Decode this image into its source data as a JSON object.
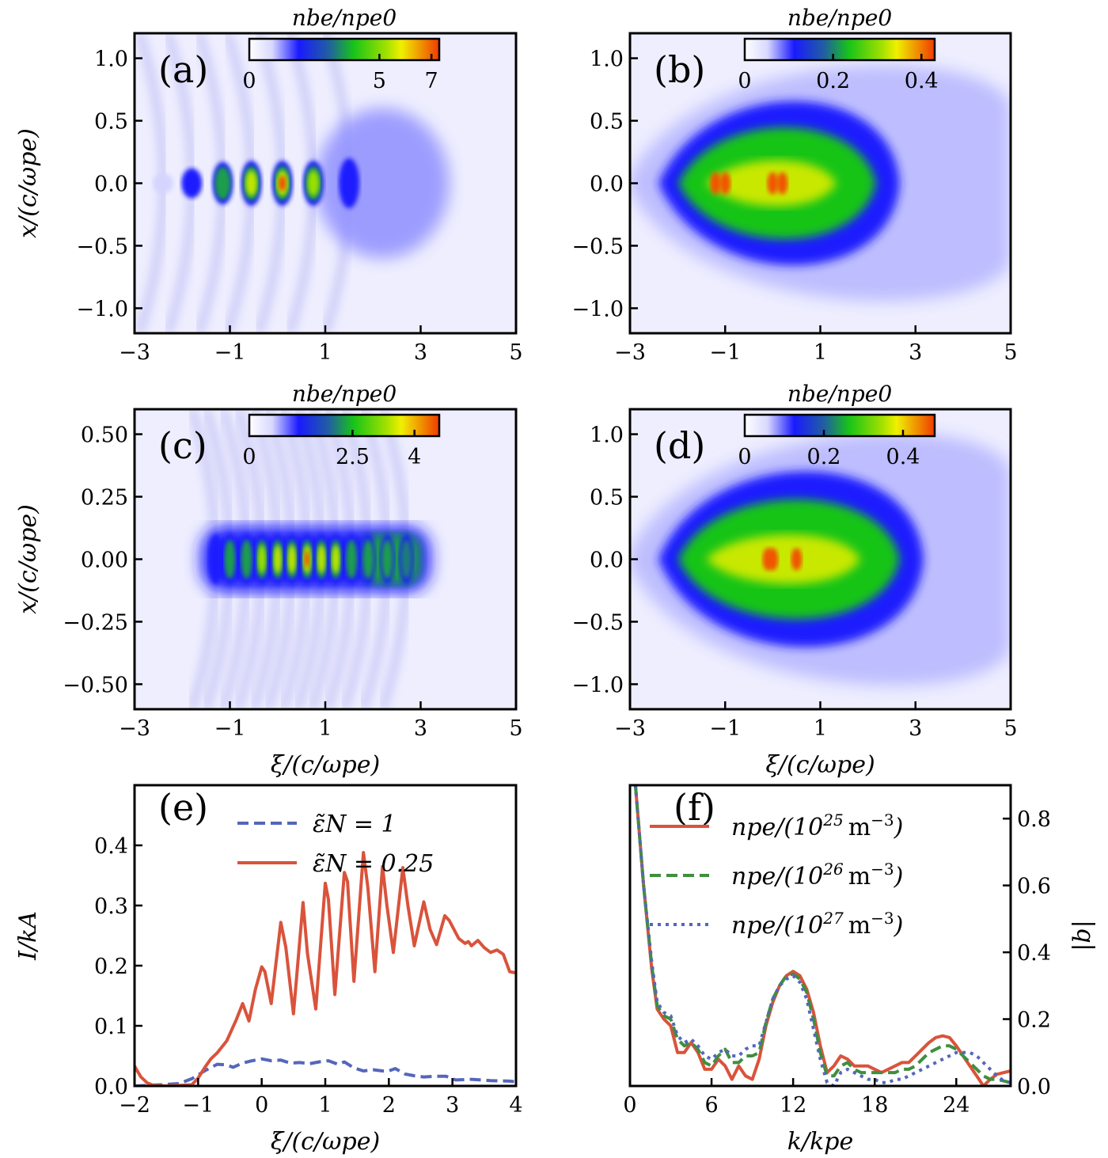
{
  "figure": {
    "colormap": [
      "#ffffff",
      "#1a1aff",
      "#18c418",
      "#e8f000",
      "#f04000"
    ],
    "colors": {
      "red": "#d9533b",
      "blue": "#5566bb",
      "green": "#3f8f3f"
    }
  },
  "chart_data": [
    {
      "id": "a",
      "type": "heatmap",
      "panel_label": "(a)",
      "title": "",
      "xlabel": "",
      "ylabel": "x/(c/ωpe)",
      "xlim": [
        -3,
        5
      ],
      "ylim": [
        -1.2,
        1.2
      ],
      "xticks": [
        -3,
        -1,
        1,
        3,
        5
      ],
      "xtick_labels": [
        "−3",
        "−1",
        "1",
        "3",
        "5"
      ],
      "yticks": [
        1.0,
        0.5,
        0.0,
        -0.5,
        -1.0
      ],
      "ytick_labels": [
        "1.0",
        "0.5",
        "0.0",
        "−0.5",
        "−1.0"
      ],
      "colorbar": {
        "label": "nbe/npe0",
        "range": [
          0,
          7.3
        ],
        "ticks": [
          0,
          5,
          7
        ],
        "tick_labels": [
          "0",
          "5",
          "7"
        ]
      },
      "features": {
        "bunch_centers_xi": [
          -2.4,
          -1.8,
          -1.15,
          -0.55,
          0.1,
          0.75,
          1.5
        ],
        "peak_values": [
          0.9,
          2.5,
          4.5,
          6.5,
          7.2,
          5.2,
          3.2
        ],
        "bunch_half_width_x": [
          0.08,
          0.12,
          0.17,
          0.18,
          0.18,
          0.18,
          0.2
        ],
        "halo_center_xi": 2.2,
        "halo_radius_x": 0.6,
        "halo_value": 0.9
      }
    },
    {
      "id": "b",
      "type": "heatmap",
      "panel_label": "(b)",
      "title": "",
      "xlabel": "",
      "ylabel": "",
      "xlim": [
        -3,
        5
      ],
      "ylim": [
        -1.2,
        1.2
      ],
      "xticks": [
        -3,
        -1,
        1,
        3,
        5
      ],
      "xtick_labels": [
        "−3",
        "−1",
        "1",
        "3",
        "5"
      ],
      "yticks": [
        1.0,
        0.5,
        0.0,
        -0.5,
        -1.0
      ],
      "ytick_labels": [
        "1.0",
        "0.5",
        "0.0",
        "−0.5",
        "−1.0"
      ],
      "colorbar": {
        "label": "nbe/npe0",
        "range": [
          0,
          0.43
        ],
        "ticks": [
          0,
          0.2,
          0.4
        ],
        "tick_labels": [
          "0",
          "0.2",
          "0.4"
        ]
      },
      "features": {
        "cone_apex_xi": -2.4,
        "cone_end_xi": 2.5,
        "max_half_width_x": 0.7,
        "core_peak": 0.42,
        "hot_spots_xi": [
          -1.2,
          -1.0,
          0.0,
          0.2
        ]
      }
    },
    {
      "id": "c",
      "type": "heatmap",
      "panel_label": "(c)",
      "title": "",
      "xlabel": "ξ/(c/ωpe)",
      "ylabel": "x/(c/ωpe)",
      "xlim": [
        -3,
        5
      ],
      "ylim": [
        -0.6,
        0.6
      ],
      "xticks": [
        -3,
        -1,
        1,
        3,
        5
      ],
      "xtick_labels": [
        "−3",
        "−1",
        "1",
        "3",
        "5"
      ],
      "yticks": [
        0.5,
        0.25,
        0.0,
        -0.25,
        -0.5
      ],
      "ytick_labels": [
        "0.50",
        "0.25",
        "0.00",
        "−0.25",
        "−0.50"
      ],
      "colorbar": {
        "label": "nbe/npe0",
        "range": [
          0,
          4.6
        ],
        "ticks": [
          0,
          2.5,
          4
        ],
        "tick_labels": [
          "0",
          "2.5",
          "4"
        ]
      },
      "features": {
        "bunch_centers_xi": [
          -1.3,
          -1.0,
          -0.65,
          -0.33,
          0.0,
          0.3,
          0.62,
          0.92,
          1.22,
          1.55,
          1.9,
          2.3,
          2.7
        ],
        "peak_values": [
          1.3,
          2.4,
          3.0,
          3.3,
          3.8,
          4.1,
          4.5,
          4.2,
          3.6,
          3.0,
          2.5,
          2.3,
          2.1
        ]
      }
    },
    {
      "id": "d",
      "type": "heatmap",
      "panel_label": "(d)",
      "title": "",
      "xlabel": "ξ/(c/ωpe)",
      "ylabel": "",
      "xlim": [
        -3,
        5
      ],
      "ylim": [
        -1.2,
        1.2
      ],
      "xticks": [
        -3,
        -1,
        1,
        3,
        5
      ],
      "xtick_labels": [
        "−3",
        "−1",
        "1",
        "3",
        "5"
      ],
      "yticks": [
        1.0,
        0.5,
        0.0,
        -0.5,
        -1.0
      ],
      "ytick_labels": [
        "1.0",
        "0.5",
        "0.0",
        "−0.5",
        "−1.0"
      ],
      "colorbar": {
        "label": "nbe/npe0",
        "range": [
          0,
          0.48
        ],
        "ticks": [
          0,
          0.2,
          0.4
        ],
        "tick_labels": [
          "0",
          "0.2",
          "0.4"
        ]
      },
      "features": {
        "cone_apex_xi": -2.4,
        "cone_end_xi": 3.0,
        "max_half_width_x": 0.75,
        "core_peak": 0.46,
        "hot_spots_xi": [
          -0.1,
          0.0,
          0.5
        ]
      }
    },
    {
      "id": "e",
      "type": "line",
      "panel_label": "(e)",
      "title": "",
      "xlabel": "ξ/(c/ωpe)",
      "ylabel": "I/kA",
      "xlim": [
        -2,
        4
      ],
      "ylim": [
        0,
        0.5
      ],
      "xticks": [
        -2,
        -1,
        0,
        1,
        2,
        3,
        4
      ],
      "xtick_labels": [
        "−2",
        "−1",
        "0",
        "1",
        "2",
        "3",
        "4"
      ],
      "yticks": [
        0.0,
        0.1,
        0.2,
        0.3,
        0.4
      ],
      "ytick_labels": [
        "0.0",
        "0.1",
        "0.2",
        "0.3",
        "0.4"
      ],
      "legend_position": "top-right",
      "series": [
        {
          "name": "ε̃N = 1",
          "legend_label": "ε̃N = 1",
          "style": "dashed",
          "color": "#5566bb",
          "x": [
            -2.0,
            -1.6,
            -1.3,
            -1.1,
            -0.9,
            -0.7,
            -0.55,
            -0.45,
            -0.3,
            -0.15,
            0.0,
            0.15,
            0.3,
            0.45,
            0.6,
            0.75,
            0.9,
            1.05,
            1.2,
            1.3,
            1.45,
            1.6,
            1.75,
            1.9,
            2.0,
            2.1,
            2.25,
            2.4,
            2.55,
            2.7,
            2.9,
            3.05,
            3.3,
            3.6,
            3.9,
            4.0
          ],
          "y": [
            0.0,
            0.002,
            0.004,
            0.012,
            0.025,
            0.036,
            0.035,
            0.031,
            0.038,
            0.042,
            0.045,
            0.042,
            0.043,
            0.038,
            0.039,
            0.037,
            0.04,
            0.042,
            0.036,
            0.04,
            0.03,
            0.025,
            0.027,
            0.025,
            0.025,
            0.029,
            0.02,
            0.017,
            0.015,
            0.016,
            0.016,
            0.01,
            0.011,
            0.009,
            0.008,
            0.007
          ]
        },
        {
          "name": "ε̃N = 0.25",
          "legend_label": "ε̃N = 0.25",
          "style": "solid",
          "color": "#d9533b",
          "x": [
            -2.0,
            -1.9,
            -1.8,
            -1.7,
            -1.5,
            -1.3,
            -1.1,
            -1.0,
            -0.9,
            -0.8,
            -0.7,
            -0.55,
            -0.4,
            -0.3,
            -0.2,
            -0.1,
            0.0,
            0.05,
            0.15,
            0.3,
            0.38,
            0.5,
            0.65,
            0.72,
            0.85,
            1.0,
            1.05,
            1.15,
            1.3,
            1.35,
            1.45,
            1.6,
            1.67,
            1.78,
            1.9,
            1.97,
            2.07,
            2.22,
            2.3,
            2.4,
            2.55,
            2.65,
            2.75,
            2.88,
            2.95,
            3.1,
            3.2,
            3.25,
            3.3,
            3.4,
            3.5,
            3.6,
            3.7,
            3.8,
            3.9,
            4.0
          ],
          "y": [
            0.033,
            0.015,
            0.005,
            0.001,
            0.0,
            0.001,
            0.002,
            0.013,
            0.03,
            0.045,
            0.055,
            0.075,
            0.11,
            0.137,
            0.108,
            0.16,
            0.198,
            0.19,
            0.137,
            0.272,
            0.23,
            0.12,
            0.305,
            0.22,
            0.128,
            0.337,
            0.31,
            0.152,
            0.355,
            0.34,
            0.174,
            0.388,
            0.33,
            0.19,
            0.365,
            0.3,
            0.222,
            0.363,
            0.3,
            0.233,
            0.306,
            0.26,
            0.235,
            0.283,
            0.275,
            0.245,
            0.237,
            0.24,
            0.233,
            0.242,
            0.23,
            0.222,
            0.226,
            0.219,
            0.19,
            0.188
          ]
        }
      ]
    },
    {
      "id": "f",
      "type": "line",
      "panel_label": "(f)",
      "title": "",
      "xlabel": "k/kpe",
      "ylabel": "|b|",
      "ylabel_position": "right",
      "xlim": [
        0,
        28
      ],
      "ylim": [
        0,
        0.9
      ],
      "xticks": [
        0,
        6,
        12,
        18,
        24
      ],
      "xtick_labels": [
        "0",
        "6",
        "12",
        "18",
        "24"
      ],
      "yticks": [
        0.0,
        0.2,
        0.4,
        0.6,
        0.8
      ],
      "ytick_labels": [
        "0.0",
        "0.2",
        "0.4",
        "0.6",
        "0.8"
      ],
      "legend_position": "top-right",
      "series": [
        {
          "name": "npe/(10^25 m^-3)",
          "legend_main": "npe/(10",
          "legend_exp": "25",
          "legend_tail": "m",
          "legend_tail_exp": "−3",
          "style": "solid",
          "color": "#d9533b",
          "x": [
            0.4,
            1.0,
            1.6,
            2.0,
            2.5,
            3.0,
            3.5,
            4.0,
            4.5,
            5.0,
            5.5,
            6.0,
            6.5,
            7.0,
            7.5,
            8.0,
            8.5,
            9.0,
            9.5,
            10.0,
            10.5,
            11.0,
            11.5,
            12.0,
            12.5,
            13.0,
            13.5,
            14.0,
            14.5,
            15.0,
            15.5,
            16.0,
            16.5,
            17.0,
            17.5,
            18.0,
            18.5,
            19.0,
            19.5,
            20.0,
            20.5,
            21.0,
            21.5,
            22.0,
            22.5,
            23.0,
            23.5,
            24.0,
            24.5,
            25.0,
            25.5,
            26.0,
            26.5,
            27.0,
            27.5,
            28.0
          ],
          "y": [
            0.9,
            0.6,
            0.35,
            0.23,
            0.2,
            0.18,
            0.1,
            0.1,
            0.13,
            0.1,
            0.05,
            0.05,
            0.08,
            0.06,
            0.02,
            0.06,
            0.03,
            0.02,
            0.08,
            0.18,
            0.25,
            0.3,
            0.33,
            0.343,
            0.33,
            0.29,
            0.22,
            0.12,
            0.04,
            0.06,
            0.09,
            0.08,
            0.06,
            0.06,
            0.06,
            0.05,
            0.04,
            0.05,
            0.06,
            0.07,
            0.07,
            0.09,
            0.11,
            0.13,
            0.145,
            0.15,
            0.145,
            0.12,
            0.09,
            0.06,
            0.03,
            0.0,
            0.02,
            0.035,
            0.04,
            0.045
          ]
        },
        {
          "name": "npe/(10^26 m^-3)",
          "legend_main": "npe/(10",
          "legend_exp": "26",
          "legend_tail": "m",
          "legend_tail_exp": "−3",
          "style": "dashed",
          "color": "#3f8f3f",
          "x": [
            0.4,
            1.0,
            1.6,
            2.0,
            2.5,
            3.0,
            3.5,
            4.0,
            4.5,
            5.0,
            5.5,
            6.0,
            6.5,
            7.0,
            7.5,
            8.0,
            8.5,
            9.0,
            9.5,
            10.0,
            10.5,
            11.0,
            11.5,
            12.0,
            12.5,
            13.0,
            13.5,
            14.0,
            14.5,
            15.0,
            15.5,
            16.0,
            16.5,
            17.0,
            17.5,
            18.0,
            18.5,
            19.0,
            19.5,
            20.0,
            20.5,
            21.0,
            21.5,
            22.0,
            22.5,
            23.0,
            23.5,
            24.0,
            24.5,
            25.0,
            25.5,
            26.0,
            26.5,
            27.0,
            27.5,
            28.0
          ],
          "y": [
            0.9,
            0.6,
            0.36,
            0.24,
            0.21,
            0.2,
            0.14,
            0.12,
            0.13,
            0.11,
            0.07,
            0.06,
            0.09,
            0.11,
            0.07,
            0.07,
            0.09,
            0.09,
            0.1,
            0.19,
            0.26,
            0.3,
            0.33,
            0.335,
            0.32,
            0.28,
            0.2,
            0.1,
            0.03,
            0.03,
            0.06,
            0.07,
            0.05,
            0.04,
            0.04,
            0.04,
            0.04,
            0.04,
            0.04,
            0.05,
            0.05,
            0.06,
            0.08,
            0.1,
            0.11,
            0.12,
            0.12,
            0.11,
            0.09,
            0.07,
            0.05,
            0.03,
            0.02,
            0.02,
            0.015,
            0.01
          ]
        },
        {
          "name": "npe/(10^27 m^-3)",
          "legend_main": "npe/(10",
          "legend_exp": "27",
          "legend_tail": "m",
          "legend_tail_exp": "−3",
          "style": "dotted",
          "color": "#5566bb",
          "x": [
            0.4,
            1.0,
            1.6,
            2.0,
            2.5,
            3.0,
            3.5,
            4.0,
            4.5,
            5.0,
            5.5,
            6.0,
            6.5,
            7.0,
            7.5,
            8.0,
            8.5,
            9.0,
            9.5,
            10.0,
            10.5,
            11.0,
            11.5,
            12.0,
            12.5,
            13.0,
            13.5,
            14.0,
            14.5,
            15.0,
            15.5,
            16.0,
            16.5,
            17.0,
            17.5,
            18.0,
            18.5,
            19.0,
            19.5,
            20.0,
            20.5,
            21.0,
            21.5,
            22.0,
            22.5,
            23.0,
            23.5,
            24.0,
            24.5,
            25.0,
            25.5,
            26.0,
            26.5,
            27.0,
            27.5,
            28.0
          ],
          "y": [
            0.9,
            0.6,
            0.37,
            0.25,
            0.22,
            0.21,
            0.15,
            0.13,
            0.14,
            0.12,
            0.09,
            0.08,
            0.1,
            0.11,
            0.09,
            0.09,
            0.11,
            0.12,
            0.12,
            0.19,
            0.26,
            0.3,
            0.32,
            0.33,
            0.31,
            0.26,
            0.17,
            0.08,
            0.01,
            0.0,
            0.04,
            0.05,
            0.04,
            0.03,
            0.02,
            0.02,
            0.01,
            0.01,
            0.02,
            0.02,
            0.03,
            0.04,
            0.05,
            0.06,
            0.07,
            0.08,
            0.09,
            0.1,
            0.1,
            0.1,
            0.09,
            0.07,
            0.05,
            0.03,
            0.015,
            0.01
          ]
        }
      ]
    }
  ]
}
